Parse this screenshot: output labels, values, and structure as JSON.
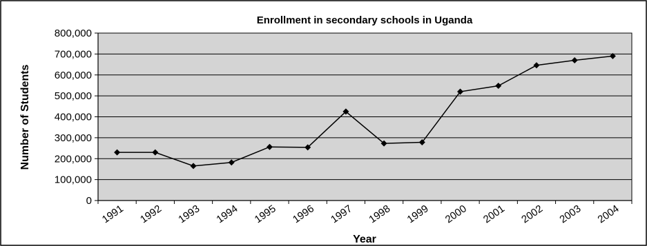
{
  "chart_data": {
    "type": "line",
    "title": "Enrollment in secondary schools in Uganda",
    "xlabel": "Year",
    "ylabel": "Number of Students",
    "x": [
      "1991",
      "1992",
      "1993",
      "1994",
      "1995",
      "1996",
      "1997",
      "1998",
      "1999",
      "2000",
      "2001",
      "2002",
      "2003",
      "2004"
    ],
    "series": [
      {
        "values": [
          230000,
          230000,
          165000,
          182000,
          256000,
          254000,
          425000,
          273000,
          278000,
          520000,
          548000,
          646000,
          670000,
          690000
        ]
      }
    ],
    "ylim": [
      0,
      800000
    ],
    "yticks": [
      "0",
      "100,000",
      "200,000",
      "300,000",
      "400,000",
      "500,000",
      "600,000",
      "700,000",
      "800,000"
    ],
    "grid": true,
    "plot_background": "#d4d4d4",
    "line_color": "#000000",
    "marker": "diamond"
  }
}
